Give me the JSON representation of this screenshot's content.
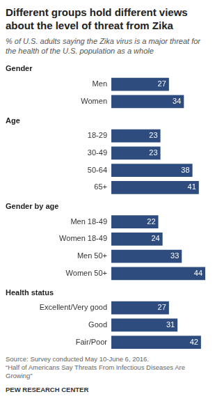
{
  "chart_data": {
    "type": "bar",
    "orientation": "horizontal",
    "title": "Different groups hold different views about the level of threat from Zika",
    "subtitle": "% of U.S. adults saying the Zika virus is a major threat for the health of the U.S. population as a whole",
    "groups": [
      {
        "name": "Gender",
        "categories": [
          "Men",
          "Women"
        ],
        "values": [
          27,
          34
        ]
      },
      {
        "name": "Age",
        "categories": [
          "18-29",
          "30-49",
          "50-64",
          "65+"
        ],
        "values": [
          23,
          23,
          38,
          41
        ]
      },
      {
        "name": "Gender by age",
        "categories": [
          "Men 18-49",
          "Women 18-49",
          "Men 50+",
          "Women 50+"
        ],
        "values": [
          22,
          24,
          33,
          44
        ]
      },
      {
        "name": "Health status",
        "categories": [
          "Excellent/Very good",
          "Good",
          "Fair/Poor"
        ],
        "values": [
          27,
          31,
          42
        ]
      }
    ],
    "color": "#2e4d7e",
    "xlim": [
      0,
      44
    ],
    "tick_labels": false,
    "grid": false,
    "data_labels": true,
    "source": "Source: Survey conducted May 10-June 6, 2016.",
    "note": "“Half of Americans Say Threats From Infectious Diseases Are Growing”",
    "credit": "PEW RESEARCH CENTER"
  }
}
